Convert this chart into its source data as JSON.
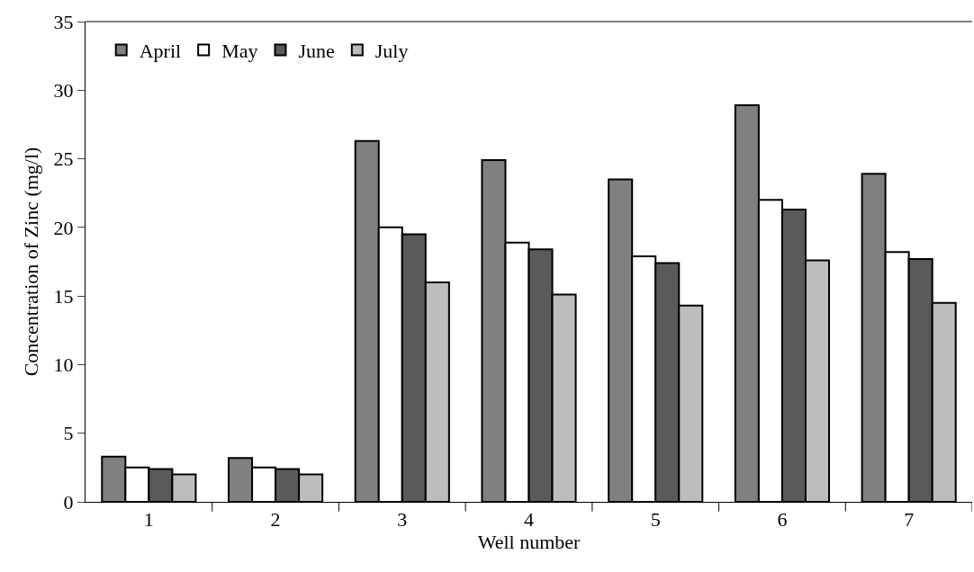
{
  "chart_data": {
    "type": "bar",
    "xlabel": "Well number",
    "ylabel": "Concentration of Zinc (mg/l)",
    "categories": [
      "1",
      "2",
      "3",
      "4",
      "5",
      "6",
      "7"
    ],
    "series": [
      {
        "name": "April",
        "color": "#808080",
        "values": [
          3.3,
          3.2,
          26.3,
          24.9,
          23.5,
          28.9,
          23.9
        ]
      },
      {
        "name": "May",
        "color": "#ffffff",
        "values": [
          2.5,
          2.5,
          20.0,
          18.9,
          17.9,
          22.0,
          18.2
        ]
      },
      {
        "name": "June",
        "color": "#5a5a5a",
        "values": [
          2.4,
          2.4,
          19.5,
          18.4,
          17.4,
          21.3,
          17.7
        ]
      },
      {
        "name": "July",
        "color": "#bdbdbd",
        "values": [
          2.0,
          2.0,
          16.0,
          15.1,
          14.3,
          17.6,
          14.5
        ]
      }
    ],
    "ylim": [
      0,
      35
    ],
    "yticks": [
      0,
      5,
      10,
      15,
      20,
      25,
      30,
      35
    ],
    "grid": false,
    "legend": "top left"
  }
}
